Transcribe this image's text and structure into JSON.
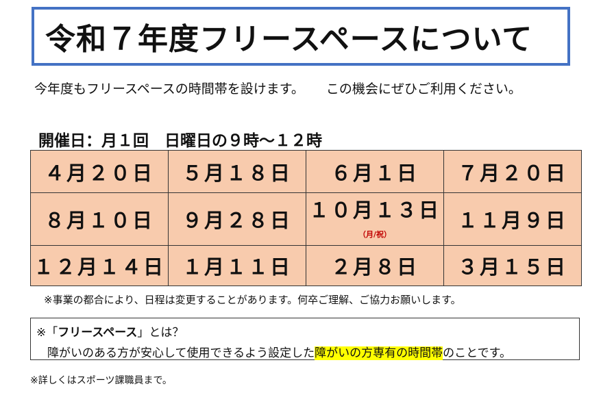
{
  "title": "令和７年度フリースペースについて",
  "intro": {
    "part1": "今年度もフリースペースの時間帯を設けます。",
    "part2": "この機会にぜひご利用ください。"
  },
  "schedule_label": "開催日：月１回　日曜日の９時〜１２時",
  "dates": {
    "row1": [
      "４月２０日",
      "５月１８日",
      "６月１日",
      "７月２０日"
    ],
    "row2": [
      "８月１０日",
      "９月２８日",
      "１０月１３日",
      "１１月９日"
    ],
    "row2_note": "（月/祝）",
    "row3": [
      "１２月１４日",
      "１月１１日",
      "２月８日",
      "３月１５日"
    ]
  },
  "notice": "※事業の都合により、日程は変更することがあります。何卒ご理解、ご協力お願いします。",
  "definition": {
    "prefix": "※「",
    "term": "フリースペース",
    "suffix": "」とは？",
    "body_before": "障がいのある方が安心して使用できるよう設定した",
    "body_highlight": "障がいの方専有の時間帯",
    "body_after": "のことです。",
    "highlight_color": "#ffff00"
  },
  "footer": "※詳しくはスポーツ課職員まで。",
  "colors": {
    "title_border": "#4472c4",
    "table_bg": "#f8cbad",
    "note_red": "#c00000"
  }
}
